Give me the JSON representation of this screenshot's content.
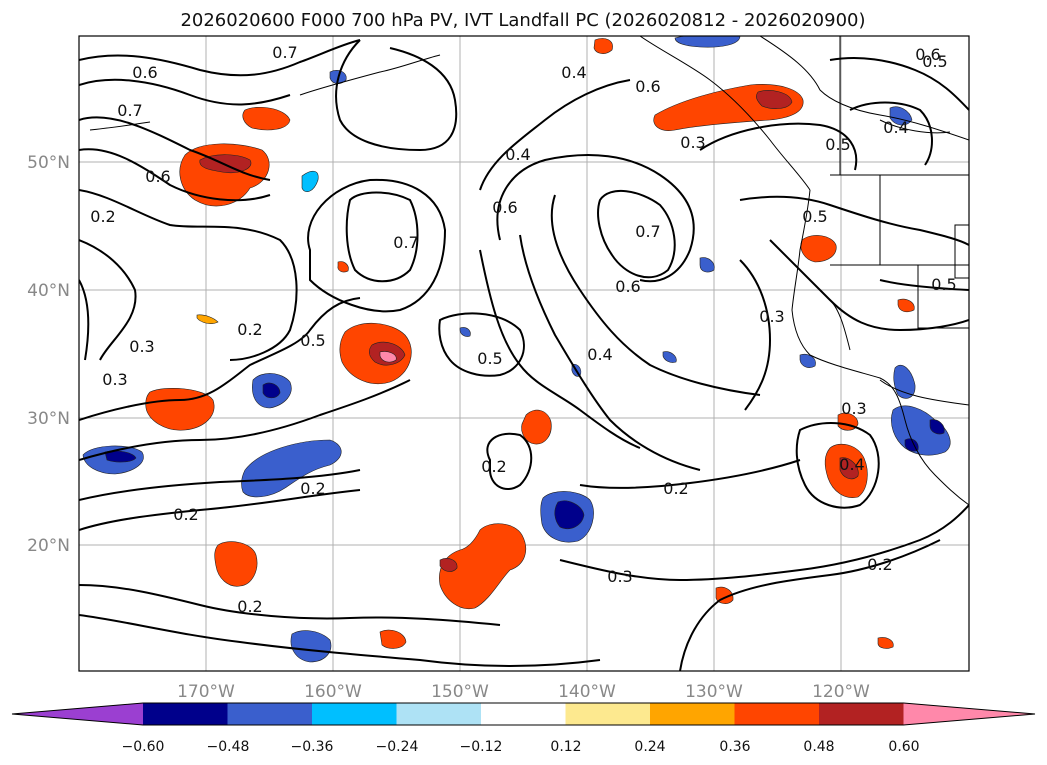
{
  "title": "2026020600 F000 700 hPa PV, IVT Landfall PC (2026020812 - 2026020900)",
  "axes": {
    "lon_ticks": [
      "170°W",
      "160°W",
      "150°W",
      "140°W",
      "130°W",
      "120°W"
    ],
    "lat_ticks": [
      "50°N",
      "40°N",
      "30°N",
      "20°N"
    ]
  },
  "contour_labels": [
    "0.7",
    "0.6",
    "0.7",
    "0.6",
    "0.2",
    "0.2",
    "0.3",
    "0.3",
    "0.5",
    "0.5",
    "0.7",
    "0.6",
    "0.4",
    "0.4",
    "0.6",
    "0.7",
    "0.6",
    "0.4",
    "0.3",
    "0.2",
    "0.2",
    "0.2",
    "0.2",
    "0.2",
    "0.3",
    "0.3",
    "0.4",
    "0.2",
    "0.5",
    "0.5",
    "0.3",
    "0.5",
    "0.6",
    "0.4",
    "0.5"
  ],
  "colorbar": {
    "colors": [
      "#9b3fd1",
      "#00008b",
      "#3a5fcd",
      "#00bfff",
      "#aee2f5",
      "#ffffff",
      "#fde98f",
      "#ffa500",
      "#ff4500",
      "#b22222",
      "#ff88aa"
    ],
    "tick_labels": [
      "−0.60",
      "−0.48",
      "−0.36",
      "−0.24",
      "−0.12",
      "0.12",
      "0.24",
      "0.36",
      "0.48",
      "0.60"
    ]
  }
}
